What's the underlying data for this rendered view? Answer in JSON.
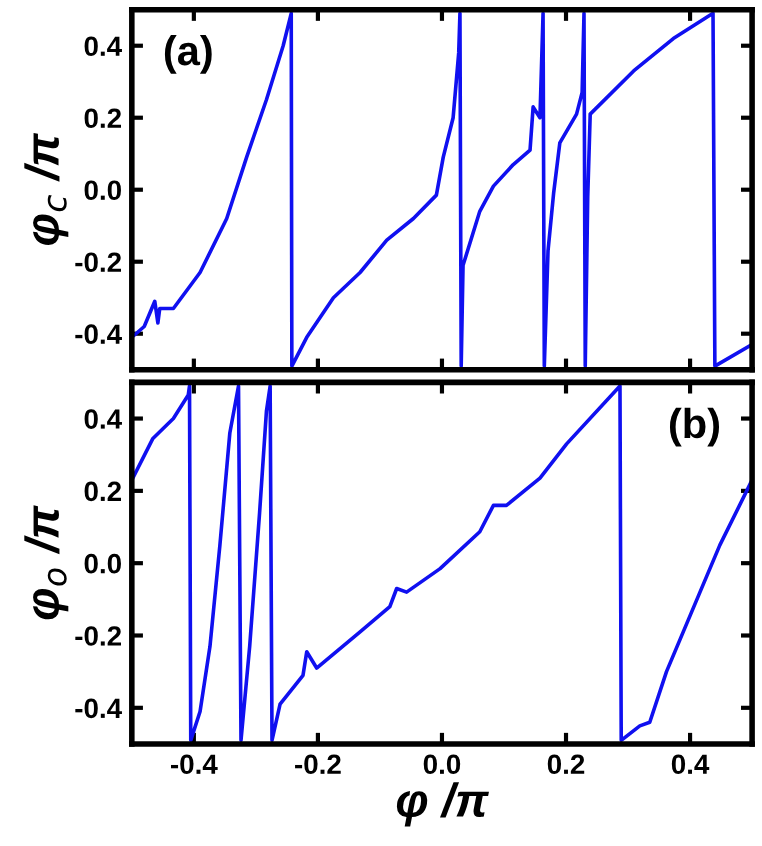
{
  "chart_data": [
    {
      "type": "line",
      "ylabel": "φ$_{c}$ /π",
      "annotations": [
        "(a)"
      ],
      "xlim": [
        -0.5,
        0.5
      ],
      "ylim": [
        -0.5,
        0.5
      ],
      "xticks": [
        {
          "value": -0.4,
          "label": null
        },
        {
          "value": -0.2,
          "label": null
        },
        {
          "value": 0,
          "label": null
        },
        {
          "value": 0.2,
          "label": null
        },
        {
          "value": 0.4,
          "label": null
        }
      ],
      "yticks": [
        -0.4,
        -0.2,
        {
          "value": 0,
          "label": "0.0"
        },
        0.2,
        0.4
      ],
      "tick_labels": "y",
      "grid": false,
      "legend": false,
      "line_style": "solid",
      "marker": "none",
      "series": [
        {
          "color": "#1010f0",
          "x": [
            -0.5,
            -0.48,
            -0.463,
            -0.458,
            -0.455,
            -0.433,
            -0.39,
            -0.347,
            -0.315,
            -0.283,
            -0.256,
            -0.243,
            -0.242,
            -0.218,
            -0.175,
            -0.132,
            -0.089,
            -0.046,
            -0.009,
            0.002,
            0.018,
            0.027,
            0.029,
            0.031,
            0.034,
            0.061,
            0.083,
            0.115,
            0.142,
            0.147,
            0.158,
            0.163,
            0.165,
            0.171,
            0.18,
            0.19,
            0.217,
            0.226,
            0.229,
            0.231,
            0.235,
            0.239,
            0.309,
            0.373,
            0.437,
            0.44,
            0.5
          ],
          "values": [
            -0.41,
            -0.38,
            -0.31,
            -0.37,
            -0.33,
            -0.33,
            -0.23,
            -0.08,
            0.09,
            0.25,
            0.4,
            0.49,
            -0.49,
            -0.41,
            -0.3,
            -0.23,
            -0.14,
            -0.08,
            -0.015,
            0.09,
            0.2,
            0.38,
            0.49,
            -0.49,
            -0.21,
            -0.06,
            0.01,
            0.07,
            0.11,
            0.23,
            0.2,
            0.49,
            -0.49,
            -0.17,
            -0.01,
            0.13,
            0.21,
            0.27,
            0.49,
            -0.49,
            -0.02,
            0.21,
            0.33,
            0.42,
            0.49,
            -0.49,
            -0.43
          ]
        }
      ]
    },
    {
      "type": "line",
      "ylabel": "φ$_{o}$ /π",
      "xlabel": "φ /π",
      "annotations": [
        "(b)"
      ],
      "xlim": [
        -0.5,
        0.5
      ],
      "ylim": [
        -0.5,
        0.5
      ],
      "xticks": [
        -0.4,
        -0.2,
        {
          "value": 0,
          "label": "0.0"
        },
        0.2,
        0.4
      ],
      "yticks": [
        -0.4,
        -0.2,
        {
          "value": 0,
          "label": "0.0"
        },
        0.2,
        0.4
      ],
      "grid": false,
      "legend": false,
      "line_style": "solid",
      "marker": "none",
      "series": [
        {
          "color": "#1010f0",
          "x": [
            -0.5,
            -0.466,
            -0.433,
            -0.409,
            -0.407,
            -0.405,
            -0.39,
            -0.374,
            -0.358,
            -0.342,
            -0.328,
            -0.324,
            -0.31,
            -0.294,
            -0.283,
            -0.277,
            -0.274,
            -0.261,
            -0.224,
            -0.218,
            -0.202,
            -0.132,
            -0.084,
            -0.073,
            -0.057,
            -0.003,
            0.061,
            0.083,
            0.104,
            0.158,
            0.201,
            0.287,
            0.289,
            0.319,
            0.335,
            0.362,
            0.416,
            0.448,
            0.5
          ],
          "values": [
            0.23,
            0.345,
            0.4,
            0.465,
            0.49,
            -0.49,
            -0.41,
            -0.23,
            0.05,
            0.36,
            0.49,
            -0.49,
            -0.23,
            0.14,
            0.42,
            0.49,
            -0.49,
            -0.39,
            -0.31,
            -0.245,
            -0.29,
            -0.19,
            -0.12,
            -0.07,
            -0.08,
            -0.015,
            0.087,
            0.16,
            0.16,
            0.235,
            0.33,
            0.49,
            -0.49,
            -0.45,
            -0.44,
            -0.3,
            -0.08,
            0.05,
            0.23
          ]
        }
      ]
    }
  ]
}
